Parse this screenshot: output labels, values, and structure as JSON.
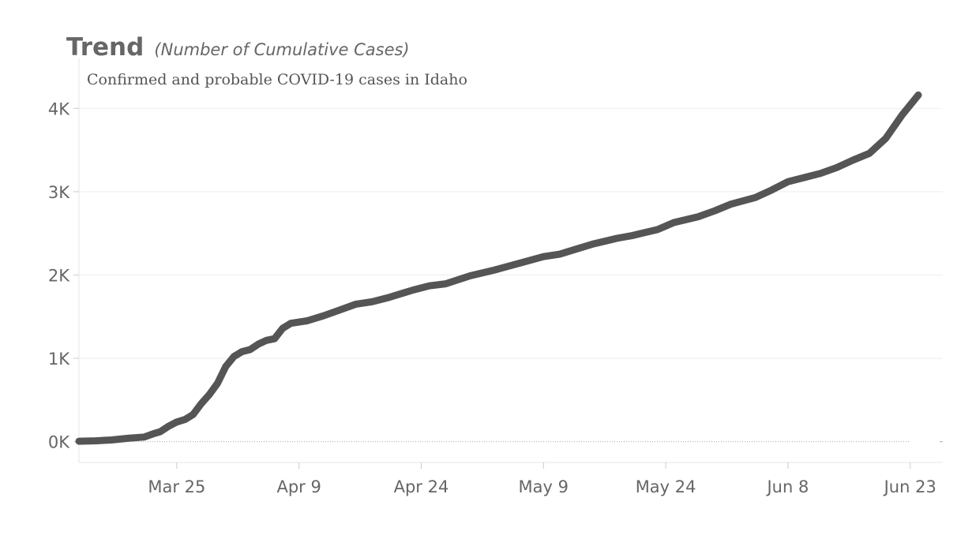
{
  "header": {
    "title": "Trend",
    "title_note": "(Number of Cumulative Cases)",
    "subtitle": "Confirmed and probable COVID-19 cases in Idaho"
  },
  "colors": {
    "line": "#555555",
    "grid": "#eeeeee",
    "text": "#666666"
  },
  "chart_data": {
    "type": "line",
    "title": "Trend",
    "subtitle": "Confirmed and probable COVID-19 cases in Idaho",
    "xlabel": "",
    "ylabel": "",
    "x_type": "date",
    "xlim": [
      "2020-03-13",
      "2020-06-27"
    ],
    "ylim": [
      -250,
      4600
    ],
    "x_ticks": [
      {
        "date": "2020-03-25",
        "label": "Mar 25"
      },
      {
        "date": "2020-04-09",
        "label": "Apr 9"
      },
      {
        "date": "2020-04-24",
        "label": "Apr 24"
      },
      {
        "date": "2020-05-09",
        "label": "May 9"
      },
      {
        "date": "2020-05-24",
        "label": "May 24"
      },
      {
        "date": "2020-06-08",
        "label": "Jun 8"
      },
      {
        "date": "2020-06-23",
        "label": "Jun 23"
      }
    ],
    "y_ticks": [
      {
        "value": 0,
        "label": "0K"
      },
      {
        "value": 1000,
        "label": "1K"
      },
      {
        "value": 2000,
        "label": "2K"
      },
      {
        "value": 3000,
        "label": "3K"
      },
      {
        "value": 4000,
        "label": "4K"
      }
    ],
    "grid": true,
    "legend": "none",
    "series": [
      {
        "x": [
          "2020-03-13",
          "2020-03-15",
          "2020-03-17",
          "2020-03-19",
          "2020-03-21",
          "2020-03-22",
          "2020-03-23",
          "2020-03-24",
          "2020-03-25",
          "2020-03-26",
          "2020-03-27",
          "2020-03-28",
          "2020-03-29",
          "2020-03-30",
          "2020-03-31",
          "2020-04-01",
          "2020-04-02",
          "2020-04-03",
          "2020-04-04",
          "2020-04-05",
          "2020-04-06",
          "2020-04-07",
          "2020-04-08",
          "2020-04-09",
          "2020-04-10",
          "2020-04-12",
          "2020-04-14",
          "2020-04-16",
          "2020-04-18",
          "2020-04-20",
          "2020-04-21",
          "2020-04-23",
          "2020-04-25",
          "2020-04-27",
          "2020-04-30",
          "2020-05-03",
          "2020-05-06",
          "2020-05-09",
          "2020-05-11",
          "2020-05-13",
          "2020-05-15",
          "2020-05-18",
          "2020-05-20",
          "2020-05-21",
          "2020-05-23",
          "2020-05-25",
          "2020-05-28",
          "2020-05-30",
          "2020-06-01",
          "2020-06-04",
          "2020-06-06",
          "2020-06-08",
          "2020-06-10",
          "2020-06-12",
          "2020-06-14",
          "2020-06-16",
          "2020-06-18",
          "2020-06-20",
          "2020-06-22",
          "2020-06-24"
        ],
        "y": [
          5,
          10,
          20,
          40,
          55,
          90,
          120,
          185,
          235,
          265,
          325,
          455,
          565,
          700,
          900,
          1020,
          1080,
          1105,
          1170,
          1215,
          1235,
          1360,
          1420,
          1435,
          1450,
          1510,
          1580,
          1650,
          1680,
          1730,
          1760,
          1820,
          1870,
          1895,
          1990,
          2060,
          2140,
          2220,
          2250,
          2310,
          2370,
          2440,
          2475,
          2500,
          2545,
          2630,
          2700,
          2770,
          2850,
          2930,
          3020,
          3120,
          3170,
          3220,
          3290,
          3380,
          3460,
          3640,
          3920,
          4160
        ]
      }
    ]
  }
}
